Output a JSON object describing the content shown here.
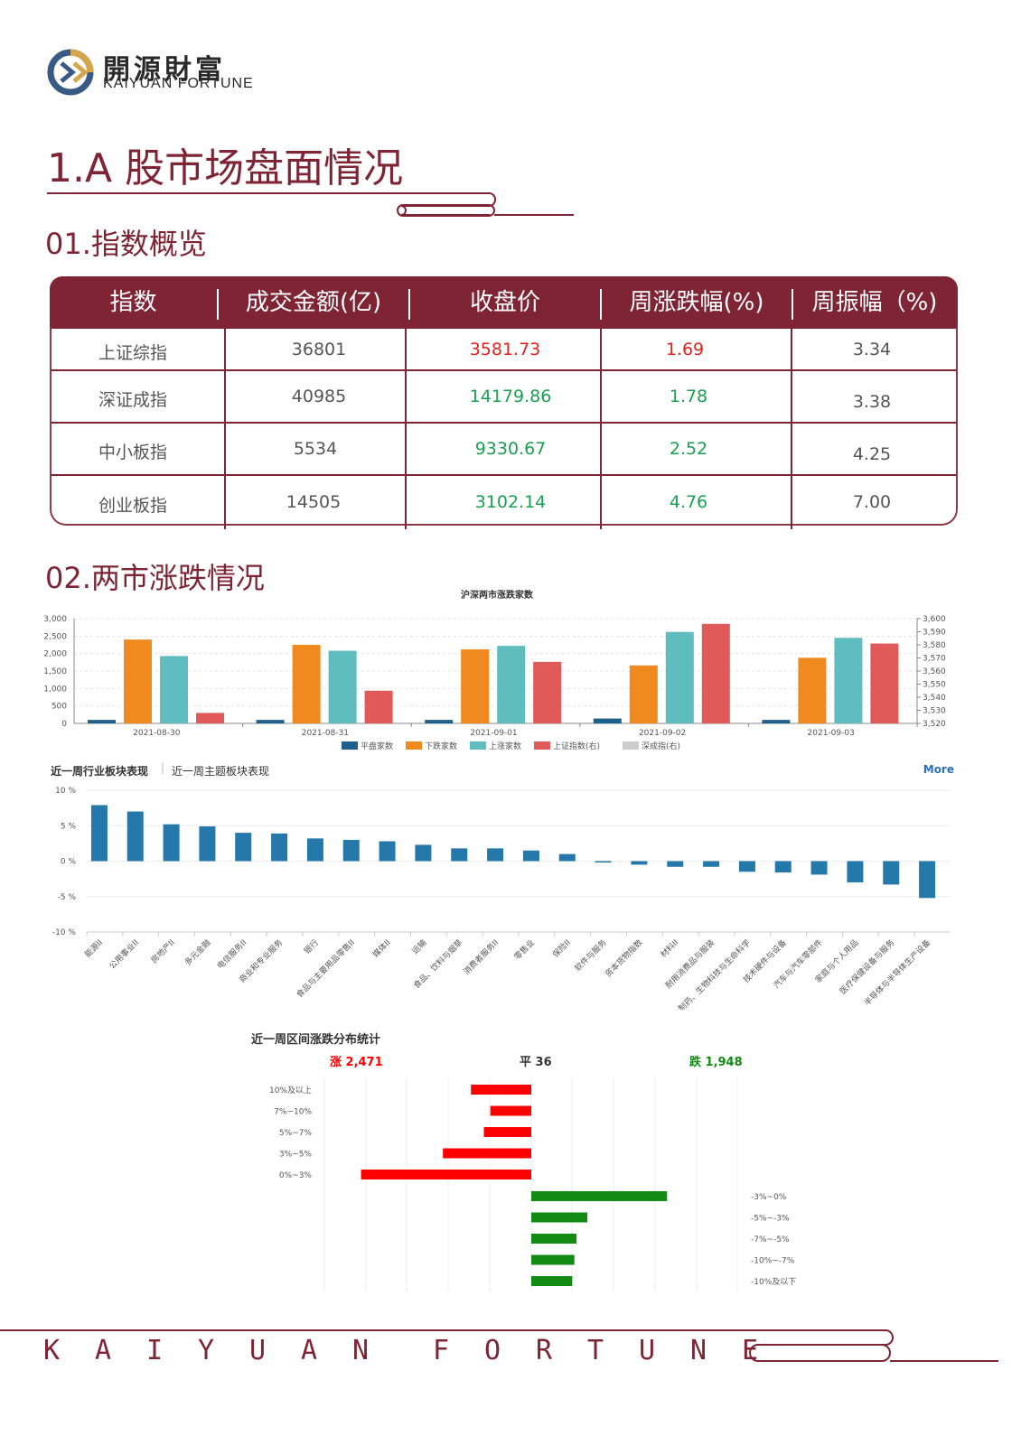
{
  "logo": {
    "cn": "開源財富",
    "en": "KAIYUAN FORTUNE"
  },
  "main_title": "1.A 股市场盘面情况",
  "sections": {
    "s1": "01.指数概览",
    "s2": "02.两市涨跌情况"
  },
  "index_table": {
    "headers": [
      "指数",
      "成交金额(亿)",
      "收盘价",
      "周涨跌幅(%)",
      "周振幅（%)"
    ],
    "rows": [
      {
        "name": "上证综指",
        "volume": "36801",
        "close": "3581.73",
        "close_color": "red",
        "chg": "1.69",
        "chg_color": "red",
        "amp": "3.34"
      },
      {
        "name": "深证成指",
        "volume": "40985",
        "close": "14179.86",
        "close_color": "green",
        "chg": "1.78",
        "chg_color": "green",
        "amp": "3.38"
      },
      {
        "name": "中小板指",
        "volume": "5534",
        "close": "9330.67",
        "close_color": "green",
        "chg": "2.52",
        "chg_color": "green",
        "amp": "4.25"
      },
      {
        "name": "创业板指",
        "volume": "14505",
        "close": "3102.14",
        "close_color": "green",
        "chg": "4.76",
        "chg_color": "green",
        "amp": "7.00"
      }
    ]
  },
  "tabs": {
    "industry": "近一周行业板块表现",
    "theme": "近一周主题板块表现",
    "more": "More"
  },
  "dist_summary": {
    "up": "涨 2,471",
    "flat": "平 36",
    "down": "跌 1,948"
  },
  "footer": {
    "text": "KAIYUAN FORTUNE"
  },
  "chart_data": [
    {
      "type": "bar",
      "title": "沪深两市涨跌家数",
      "categories": [
        "2021-08-30",
        "2021-08-31",
        "2021-09-01",
        "2021-09-02",
        "2021-09-03"
      ],
      "series": [
        {
          "name": "平盘家数",
          "color": "#1f5f8b",
          "values": [
            100,
            100,
            100,
            140,
            100
          ]
        },
        {
          "name": "下跌家数",
          "color": "#f0891e",
          "values": [
            2400,
            2250,
            2120,
            1660,
            1880
          ]
        },
        {
          "name": "上涨家数",
          "color": "#5fbdbf",
          "values": [
            1930,
            2080,
            2220,
            2620,
            2450
          ]
        }
      ],
      "right_series": [
        {
          "name": "上证指数(右)",
          "color": "#e05a5a",
          "values": [
            3528,
            3545,
            3567,
            3596,
            3581
          ]
        },
        {
          "name": "深成指(右)",
          "color": "#cccccc",
          "values": []
        }
      ],
      "y_ticks": [
        "0",
        "500",
        "1,000",
        "1,500",
        "2,000",
        "2,500",
        "3,000"
      ],
      "ylim": [
        0,
        3000
      ],
      "y2_ticks": [
        "3,520",
        "3,530",
        "3,540",
        "3,550",
        "3,560",
        "3,570",
        "3,580",
        "3,590",
        "3,600"
      ],
      "y2lim": [
        3520,
        3600
      ],
      "grid": true,
      "legend": "bottom"
    },
    {
      "type": "bar",
      "categories": [
        "能源II",
        "公用事业II",
        "房地产II",
        "多元金融",
        "电信服务II",
        "商业和专业服务",
        "银行",
        "食品与主要用品零售II",
        "媒体II",
        "运输",
        "食品、饮料与烟草",
        "消费者服务II",
        "零售业",
        "保险II",
        "软件与服务",
        "资本货物指数",
        "材料II",
        "耐用消费品与服装",
        "制药、生物科技与生命科学",
        "技术硬件与设备",
        "汽车与汽车零部件",
        "家庭与个人用品",
        "医疗保健设备与服务",
        "半导体与半导体生产设备"
      ],
      "values": [
        7.9,
        7.0,
        5.2,
        4.9,
        4.0,
        3.9,
        3.2,
        3.0,
        2.8,
        2.3,
        1.8,
        1.8,
        1.5,
        1.0,
        -0.2,
        -0.5,
        -0.8,
        -0.8,
        -1.5,
        -1.6,
        -1.9,
        -3.0,
        -3.3,
        -5.2
      ],
      "y_ticks": [
        "10 %",
        "5 %",
        "0 %",
        "-5 %",
        "-10 %"
      ],
      "ylim": [
        -10,
        10
      ],
      "color": "#2478aa",
      "grid": true
    },
    {
      "type": "bar",
      "title": "近一周区间涨跌分布统计",
      "categories_up": [
        "10%及以上",
        "7%~10%",
        "5%~7%",
        "3%~5%",
        "0%~3%"
      ],
      "values_up": [
        140,
        95,
        110,
        205,
        395
      ],
      "categories_down": [
        "-3%~0%",
        "-5%~-3%",
        "-7%~-5%",
        "-10%~-7%",
        "-10%及以下"
      ],
      "values_down": [
        315,
        130,
        105,
        100,
        95
      ],
      "color_up": "#ff0000",
      "color_down": "#138a13"
    }
  ]
}
